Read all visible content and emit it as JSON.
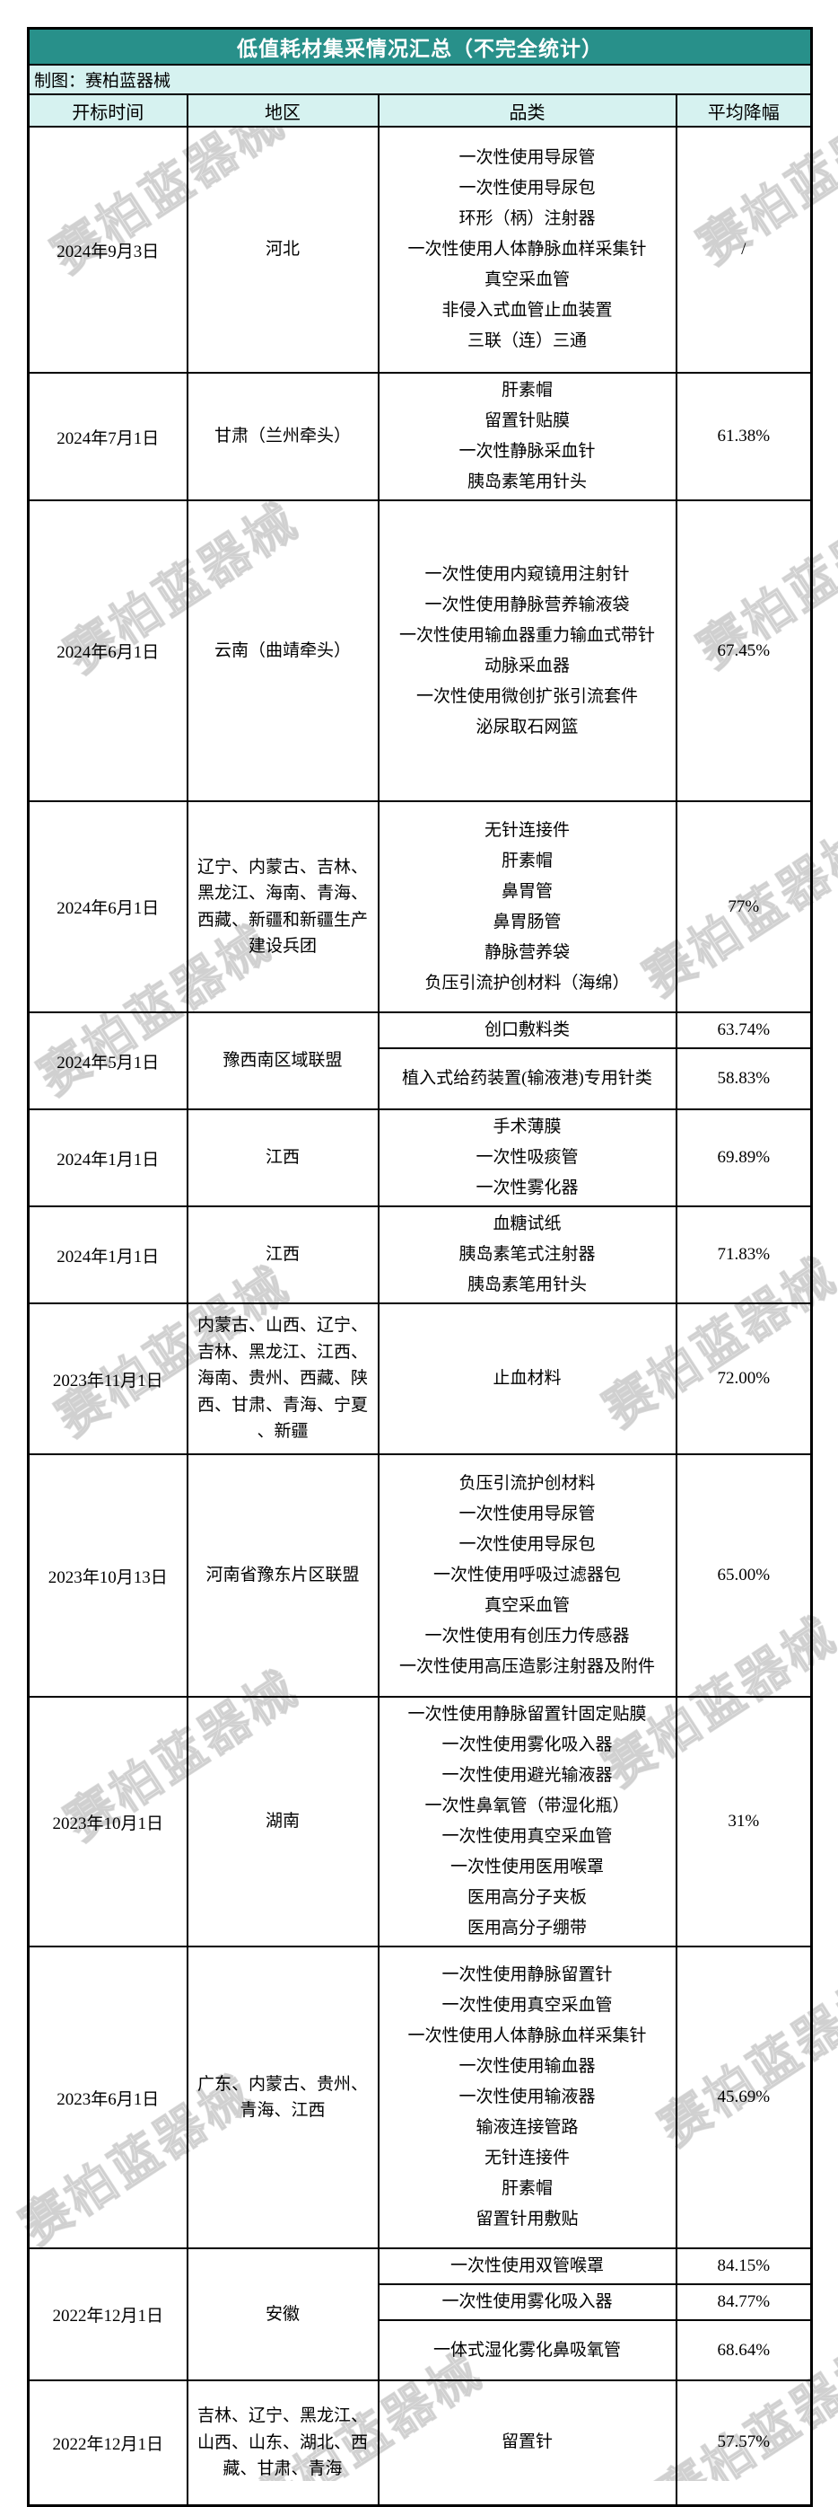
{
  "title": "低值耗材集采情况汇总（不完全统计）",
  "credit": "制图：赛柏蓝器械",
  "watermark": {
    "text": "赛柏蓝器械"
  },
  "colors": {
    "title_bg": "#28908A",
    "band_bg": "#D6F2F0",
    "border": "#000000",
    "title_text": "#FFFFFF"
  },
  "columns": [
    "开标时间",
    "地区",
    "品类",
    "平均降幅"
  ],
  "rows": [
    {
      "date": "2024年9月3日",
      "region": "河北",
      "items": [
        "一次性使用导尿管",
        "一次性使用导尿包",
        "环形（柄）注射器",
        "一次性使用人体静脉血样采集针",
        "真空采血管",
        "非侵入式血管止血装置",
        "三联（连）三通"
      ],
      "rate": "/"
    },
    {
      "date": "2024年7月1日",
      "region": "甘肃（兰州牵头）",
      "items": [
        "肝素帽",
        "留置针贴膜",
        "一次性静脉采血针",
        "胰岛素笔用针头"
      ],
      "rate": "61.38%"
    },
    {
      "date": "2024年6月1日",
      "region": "云南（曲靖牵头）",
      "items": [
        "一次性使用内窥镜用注射针",
        "一次性使用静脉营养输液袋",
        "一次性使用输血器重力输血式带针",
        "动脉采血器",
        "一次性使用微创扩张引流套件",
        "泌尿取石网篮"
      ],
      "rate": "67.45%"
    },
    {
      "date": "2024年6月1日",
      "region": "辽宁、内蒙古、吉林、黑龙江、海南、青海、西藏、新疆和新疆生产建设兵团",
      "items": [
        "无针连接件",
        "肝素帽",
        "鼻胃管",
        "鼻胃肠管",
        "静脉营养袋",
        "负压引流护创材料（海绵）"
      ],
      "rate": "77%"
    },
    {
      "date": "2024年5月1日",
      "region": "豫西南区域联盟",
      "sub_rows": [
        {
          "item": "创口敷料类",
          "rate": "63.74%"
        },
        {
          "item": "植入式给药装置(输液港)专用针类",
          "rate": "58.83%"
        }
      ]
    },
    {
      "date": "2024年1月1日",
      "region": "江西",
      "items": [
        "手术薄膜",
        "一次性吸痰管",
        "一次性雾化器"
      ],
      "rate": "69.89%"
    },
    {
      "date": "2024年1月1日",
      "region": "江西",
      "items": [
        "血糖试纸",
        "胰岛素笔式注射器",
        "胰岛素笔用针头"
      ],
      "rate": "71.83%"
    },
    {
      "date": "2023年11月1日",
      "region": "内蒙古、山西、辽宁、吉林、黑龙江、江西、海南、贵州、西藏、陕西、甘肃、青海、宁夏、新疆",
      "items": [
        "止血材料"
      ],
      "rate": "72.00%"
    },
    {
      "date": "2023年10月13日",
      "region": "河南省豫东片区联盟",
      "items": [
        "负压引流护创材料",
        "一次性使用导尿管",
        "一次性使用导尿包",
        "一次性使用呼吸过滤器包",
        "真空采血管",
        "一次性使用有创压力传感器",
        "一次性使用高压造影注射器及附件"
      ],
      "rate": "65.00%"
    },
    {
      "date": "2023年10月1日",
      "region": "湖南",
      "items": [
        "一次性使用静脉留置针固定贴膜",
        "一次性使用雾化吸入器",
        "一次性使用避光输液器",
        "一次性鼻氧管（带湿化瓶）",
        "一次性使用真空采血管",
        "一次性使用医用喉罩",
        "医用高分子夹板",
        "医用高分子绷带"
      ],
      "rate": "31%"
    },
    {
      "date": "2023年6月1日",
      "region": "广东、内蒙古、贵州、青海、江西",
      "items": [
        "一次性使用静脉留置针",
        "一次性使用真空采血管",
        "一次性使用人体静脉血样采集针",
        "一次性使用输血器",
        "一次性使用输液器",
        "输液连接管路",
        "无针连接件",
        "肝素帽",
        "留置针用敷贴"
      ],
      "rate": "45.69%"
    },
    {
      "date": "2022年12月1日",
      "region": "安徽",
      "sub_rows": [
        {
          "item": "一次性使用双管喉罩",
          "rate": "84.15%"
        },
        {
          "item": "一次性使用雾化吸入器",
          "rate": "84.77%"
        },
        {
          "item": "一体式湿化雾化鼻吸氧管",
          "rate": "68.64%"
        }
      ]
    },
    {
      "date": "2022年12月1日",
      "region": "吉林、辽宁、黑龙江、山西、山东、湖北、西藏、甘肃、青海",
      "items": [
        "留置针"
      ],
      "rate": "57.57%"
    }
  ]
}
